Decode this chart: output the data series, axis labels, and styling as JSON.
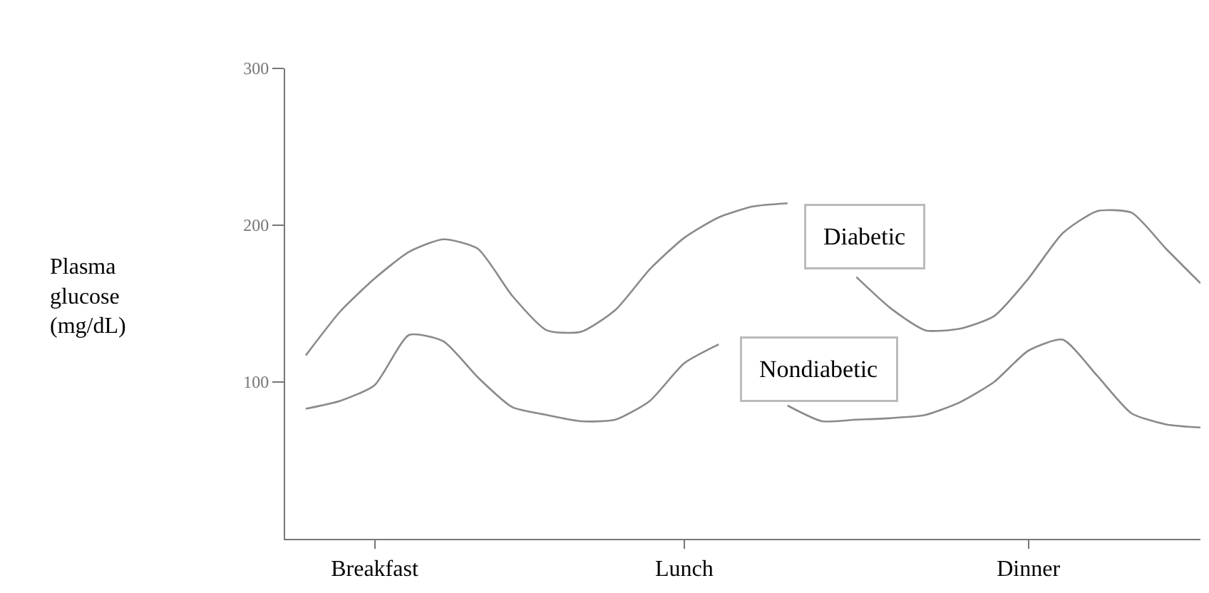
{
  "chart_data": {
    "type": "line",
    "annotations": [
      "Plasma glucose (mg/dL)"
    ],
    "categories": [
      null,
      null,
      "Breakfast",
      null,
      null,
      null,
      null,
      null,
      null,
      null,
      null,
      "Lunch",
      null,
      null,
      null,
      null,
      null,
      null,
      null,
      null,
      null,
      "Dinner",
      null,
      null,
      null,
      null,
      null
    ],
    "ylim": [
      0,
      300
    ],
    "yticks": [
      100,
      200,
      300
    ],
    "marker": "none",
    "line_style": "solid",
    "series": [
      {
        "name": "Diabetic",
        "color": "#8a8a8a",
        "values": [
          117,
          145,
          166,
          183,
          191,
          185,
          155,
          133,
          132,
          146,
          172,
          192,
          205,
          212,
          214,
          null,
          167,
          147,
          133,
          134,
          142,
          166,
          195,
          209,
          208,
          185,
          163
        ]
      },
      {
        "name": "Nondiabetic",
        "color": "#8a8a8a",
        "values": [
          83,
          88,
          98,
          130,
          126,
          103,
          84,
          79,
          75,
          76,
          88,
          112,
          124,
          null,
          85,
          75,
          76,
          77,
          79,
          87,
          100,
          120,
          127,
          104,
          80,
          73,
          71
        ]
      }
    ]
  }
}
